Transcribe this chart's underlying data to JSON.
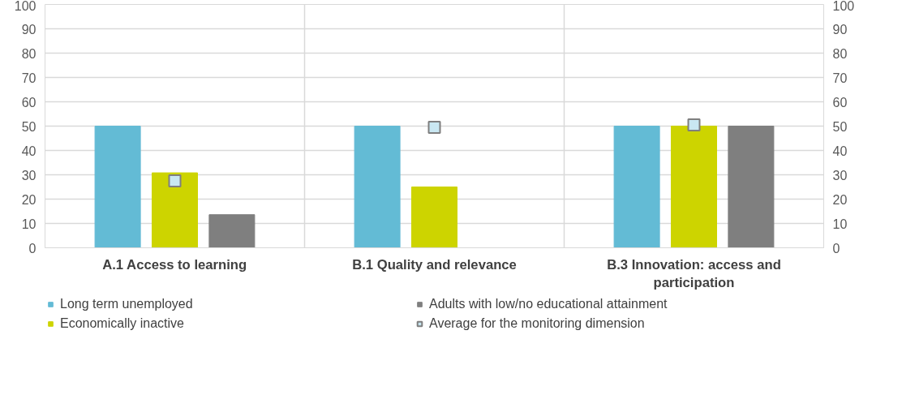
{
  "chart_data": {
    "type": "bar",
    "categories": [
      "A.1 Access to learning",
      "B.1 Quality and relevance",
      "B.3 Innovation: access and participation"
    ],
    "series": [
      {
        "name": "Long term unemployed",
        "color": "#63bbd5",
        "values": [
          50,
          50,
          50
        ]
      },
      {
        "name": "Economically inactive",
        "color": "#cdd400",
        "values": [
          30.8,
          25,
          50
        ]
      },
      {
        "name": "Adults with low/no educational attainment",
        "color": "#7f7f7f",
        "values": [
          13.6,
          null,
          50
        ]
      },
      {
        "name": "Average for the monitoring dimension",
        "type": "scatter",
        "color": "#c9e7f2",
        "values": [
          27.5,
          49.5,
          50.5
        ]
      }
    ],
    "ylim": [
      0,
      100
    ],
    "yticks": [
      0,
      10,
      20,
      30,
      40,
      50,
      60,
      70,
      80,
      90,
      100
    ],
    "y2lim": [
      0,
      100
    ],
    "y2ticks": [
      0,
      10,
      20,
      30,
      40,
      50,
      60,
      70,
      80,
      90,
      100
    ],
    "grid": true,
    "legend": "bottom",
    "marker": "square"
  }
}
